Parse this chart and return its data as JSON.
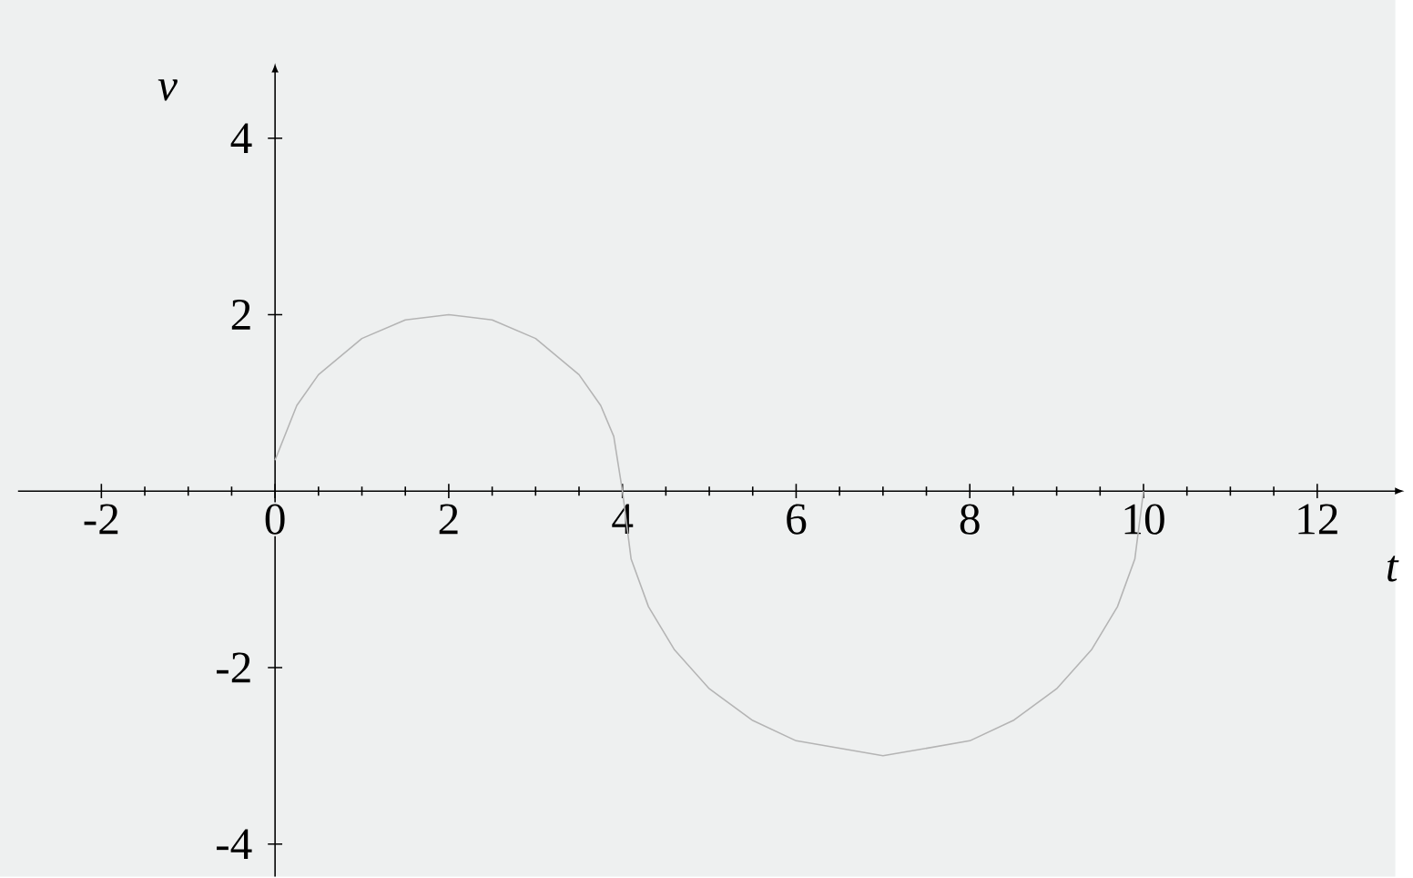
{
  "chart_data": {
    "type": "line",
    "xlabel": "t",
    "ylabel": "v",
    "x": [
      0,
      0.25,
      0.5,
      1,
      1.5,
      2,
      2.5,
      3,
      3.5,
      3.75,
      3.9,
      4,
      4.1,
      4.3,
      4.6,
      5,
      5.5,
      6,
      7,
      8,
      8.5,
      9,
      9.4,
      9.7,
      9.9,
      10
    ],
    "series": [
      {
        "color": "#b4b4b4",
        "values": [
          0.35,
          0.97,
          1.32,
          1.73,
          1.94,
          2,
          1.94,
          1.73,
          1.32,
          0.97,
          0.62,
          0,
          -0.77,
          -1.31,
          -1.8,
          -2.24,
          -2.6,
          -2.83,
          -3,
          -2.83,
          -2.6,
          -2.24,
          -1.8,
          -1.31,
          -0.77,
          0
        ]
      }
    ],
    "xlim": [
      -2.96,
      12.9
    ],
    "ylim": [
      -4.37,
      4.75
    ],
    "xticks": [
      -2,
      0,
      2,
      4,
      6,
      8,
      10,
      12
    ],
    "yticks": [
      -4,
      -2,
      2,
      4
    ],
    "grid": false,
    "marker": "none",
    "line_style": "solid"
  }
}
